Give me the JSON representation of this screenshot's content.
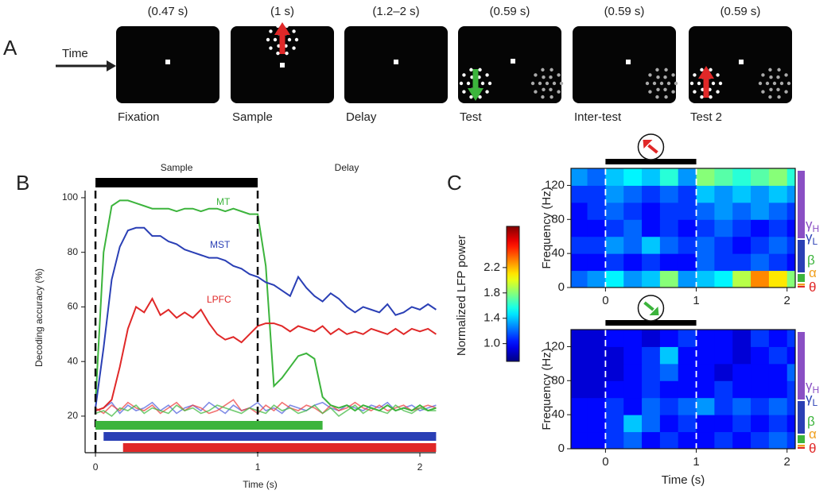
{
  "diagram": {
    "label": "A",
    "time_label": "Time",
    "epochs": [
      {
        "duration": "(0.47 s)",
        "name": "Fixation"
      },
      {
        "duration": "(1 s)",
        "name": "Sample"
      },
      {
        "duration": "(1.2–2 s)",
        "name": "Delay"
      },
      {
        "duration": "(0.59 s)",
        "name": "Test"
      },
      {
        "duration": "(0.59 s)",
        "name": "Inter-test"
      },
      {
        "duration": "(0.59 s)",
        "name": "Test 2"
      }
    ]
  },
  "chart_data": [
    {
      "type": "line",
      "panel_label": "B",
      "xlabel": "Time (s)",
      "ylabel": "Decoding accuracy (%)",
      "xlim": [
        -0.064,
        2.098
      ],
      "ylim": [
        6.6,
        102.6
      ],
      "xticks": [
        0,
        1,
        2
      ],
      "yticks": [
        20,
        40,
        60,
        80,
        100
      ],
      "phases": [
        {
          "label": "Sample"
        },
        {
          "label": "Delay"
        }
      ],
      "stimulus_bar": {
        "start": 0,
        "end": 1,
        "color": "#000000"
      },
      "markers": [
        0,
        1
      ],
      "x": [
        0,
        0.05,
        0.1,
        0.15,
        0.2,
        0.25,
        0.3,
        0.35,
        0.4,
        0.45,
        0.5,
        0.55,
        0.6,
        0.65,
        0.7,
        0.75,
        0.8,
        0.85,
        0.9,
        0.95,
        1.0,
        1.05,
        1.1,
        1.15,
        1.2,
        1.25,
        1.3,
        1.35,
        1.4,
        1.45,
        1.5,
        1.55,
        1.6,
        1.65,
        1.7,
        1.75,
        1.8,
        1.85,
        1.9,
        1.95,
        2.0,
        2.05,
        2.1
      ],
      "series": [
        {
          "name": "MT",
          "color": "#3cb43c",
          "values": [
            25,
            80,
            97,
            99,
            99,
            98,
            97,
            96,
            96,
            96,
            95,
            96,
            96,
            95,
            96,
            96,
            95,
            96,
            95,
            94,
            94,
            75,
            31,
            34,
            38,
            42,
            43,
            41,
            27,
            24,
            23,
            24,
            22,
            24,
            23,
            22,
            24,
            22,
            23,
            22,
            24,
            22,
            23
          ]
        },
        {
          "name": "MST",
          "color": "#2a3fb5",
          "values": [
            23,
            45,
            70,
            82,
            88,
            89,
            89,
            86,
            86,
            84,
            83,
            81,
            80,
            79,
            78,
            78,
            77,
            75,
            74,
            72,
            71,
            69,
            68,
            66,
            64,
            71,
            67,
            64,
            62,
            65,
            63,
            60,
            58,
            60,
            59,
            58,
            61,
            57,
            58,
            60,
            59,
            61,
            59
          ]
        },
        {
          "name": "LPFC",
          "color": "#e02828",
          "values": [
            22,
            23,
            26,
            38,
            52,
            60,
            58,
            63,
            57,
            59,
            56,
            58,
            56,
            59,
            54,
            50,
            48,
            49,
            47,
            50,
            53,
            54,
            54,
            53,
            51,
            53,
            52,
            51,
            53,
            50,
            52,
            50,
            51,
            50,
            52,
            51,
            50,
            52,
            50,
            52,
            51,
            52,
            50
          ]
        }
      ],
      "baseline_series": [
        {
          "color": "#5566dd",
          "values": [
            22,
            23,
            25,
            21,
            24,
            22,
            23,
            25,
            22,
            24,
            21,
            23,
            24,
            22,
            25,
            23,
            21,
            24,
            22,
            23,
            25,
            22,
            23,
            21,
            24,
            23,
            22,
            24,
            25,
            23,
            22,
            24,
            23,
            22,
            24,
            23,
            25,
            22,
            23,
            24,
            22,
            23,
            24
          ]
        },
        {
          "color": "#ee4444",
          "values": [
            23,
            21,
            24,
            22,
            25,
            23,
            22,
            24,
            21,
            23,
            25,
            22,
            24,
            23,
            21,
            22,
            24,
            26,
            22,
            23,
            21,
            24,
            22,
            25,
            23,
            22,
            24,
            23,
            21,
            24,
            22,
            23,
            25,
            23,
            22,
            24,
            22,
            23,
            24,
            22,
            23,
            24,
            23
          ]
        },
        {
          "color": "#44bb44",
          "values": [
            21,
            22,
            20,
            23,
            22,
            24,
            21,
            23,
            22,
            21,
            24,
            22,
            23,
            21,
            22,
            24,
            23,
            22,
            21,
            23,
            22,
            21,
            24,
            22,
            23,
            21,
            22,
            24,
            21,
            23,
            20,
            22,
            24,
            21,
            23,
            22,
            21,
            24,
            22,
            21,
            23,
            22,
            22
          ]
        }
      ],
      "significance": [
        {
          "color": "#3cb43c",
          "start": 0,
          "end": 1.4
        },
        {
          "color": "#2a3fb5",
          "start": 0.05,
          "end": 2.1
        },
        {
          "color": "#e02828",
          "start": 0.17,
          "end": 2.1
        }
      ]
    },
    {
      "type": "heatmap",
      "panel_label": "C",
      "ylabel": "Frequency (Hz)",
      "arrow_color": "#e02828",
      "xlim": [
        -0.38,
        2.09
      ],
      "ylim": [
        0,
        140
      ],
      "xticks": [
        0,
        1,
        2
      ],
      "yticks": [
        0,
        40,
        80,
        120
      ],
      "stimulus_bar": {
        "start": 0,
        "end": 1
      },
      "markers": [
        0,
        1
      ],
      "colorbar": {
        "label": "Normalized LFP power",
        "lim": [
          0.72,
          2.85
        ],
        "ticks": [
          {
            "value": 1.0,
            "label": "1.0"
          },
          1.4,
          1.8,
          2.2
        ]
      },
      "xbins": [
        -0.4,
        -0.2,
        0,
        0.2,
        0.4,
        0.6,
        0.8,
        1.0,
        1.2,
        1.4,
        1.6,
        1.8,
        2.0,
        2.2
      ],
      "ybins": [
        0,
        20,
        40,
        60,
        80,
        100,
        120,
        140
      ],
      "values": [
        [
          1.2,
          1.3,
          1.5,
          1.3,
          1.4,
          1.8,
          1.3,
          1.4,
          1.5,
          1.9,
          2.3,
          2.1,
          1.8
        ],
        [
          1.0,
          1.0,
          1.1,
          1.0,
          1.1,
          1.0,
          1.0,
          1.2,
          1.1,
          1.1,
          1.2,
          1.1,
          1.0
        ],
        [
          1.1,
          1.1,
          1.3,
          1.2,
          1.4,
          1.2,
          1.1,
          1.2,
          1.1,
          1.0,
          1.1,
          1.2,
          1.1
        ],
        [
          1.0,
          1.0,
          1.1,
          1.2,
          1.0,
          1.1,
          1.0,
          1.1,
          1.2,
          1.1,
          1.0,
          1.1,
          1.0
        ],
        [
          1.0,
          1.1,
          1.2,
          1.1,
          1.0,
          1.1,
          1.1,
          1.2,
          1.3,
          1.2,
          1.3,
          1.2,
          1.1
        ],
        [
          1.1,
          1.1,
          1.3,
          1.2,
          1.1,
          1.2,
          1.1,
          1.4,
          1.3,
          1.4,
          1.3,
          1.4,
          1.3
        ],
        [
          1.3,
          1.2,
          1.4,
          1.5,
          1.4,
          1.6,
          1.3,
          1.8,
          1.7,
          1.6,
          1.7,
          1.8,
          1.6
        ]
      ],
      "bands": [
        {
          "label": "γ",
          "sub": "H",
          "color": "#8a4fc4"
        },
        {
          "label": "γ",
          "sub": "L",
          "color": "#2a3fb5"
        },
        {
          "label": "β",
          "color": "#3cb43c"
        },
        {
          "label": "α",
          "color": "#f0a020"
        },
        {
          "label": "θ",
          "color": "#e02828"
        }
      ]
    },
    {
      "type": "heatmap",
      "ylabel": "Frequency (Hz)",
      "xlabel": "Time (s)",
      "arrow_color": "#3cb43c",
      "xlim": [
        -0.38,
        2.09
      ],
      "ylim": [
        0,
        140
      ],
      "xticks": [
        0,
        1,
        2
      ],
      "yticks": [
        0,
        40,
        80,
        120
      ],
      "stimulus_bar": {
        "start": 0,
        "end": 1
      },
      "markers": [
        0,
        1
      ],
      "xbins": [
        -0.4,
        -0.2,
        0,
        0.2,
        0.4,
        0.6,
        0.8,
        1.0,
        1.2,
        1.4,
        1.6,
        1.8,
        2.0,
        2.2
      ],
      "ybins": [
        0,
        20,
        40,
        60,
        80,
        100,
        120,
        140
      ],
      "values": [
        [
          1.0,
          1.0,
          1.1,
          1.2,
          1.0,
          1.1,
          1.0,
          1.0,
          1.1,
          1.0,
          1.1,
          1.2,
          1.1
        ],
        [
          1.0,
          1.0,
          1.1,
          1.4,
          1.2,
          1.0,
          1.1,
          1.0,
          1.0,
          1.1,
          1.0,
          1.1,
          1.0
        ],
        [
          1.0,
          1.0,
          1.1,
          1.0,
          1.2,
          1.1,
          1.2,
          1.3,
          1.1,
          1.2,
          1.1,
          1.2,
          1.1
        ],
        [
          0.9,
          0.9,
          1.0,
          1.0,
          1.1,
          1.0,
          1.0,
          1.0,
          1.1,
          1.0,
          1.0,
          1.0,
          1.1
        ],
        [
          0.9,
          0.9,
          0.9,
          1.0,
          1.1,
          1.2,
          1.0,
          1.0,
          0.9,
          1.0,
          1.0,
          1.0,
          1.2
        ],
        [
          0.9,
          0.9,
          0.9,
          1.0,
          1.1,
          1.4,
          1.0,
          1.0,
          1.0,
          0.9,
          1.0,
          1.1,
          1.0
        ],
        [
          0.9,
          0.9,
          1.0,
          1.0,
          0.9,
          1.0,
          1.1,
          1.0,
          1.0,
          0.9,
          1.1,
          1.0,
          1.1
        ]
      ],
      "bands": [
        {
          "label": "γ",
          "sub": "H",
          "color": "#8a4fc4"
        },
        {
          "label": "γ",
          "sub": "L",
          "color": "#2a3fb5"
        },
        {
          "label": "β",
          "color": "#3cb43c"
        },
        {
          "label": "α",
          "color": "#f0a020"
        },
        {
          "label": "θ",
          "color": "#e02828"
        }
      ]
    }
  ]
}
